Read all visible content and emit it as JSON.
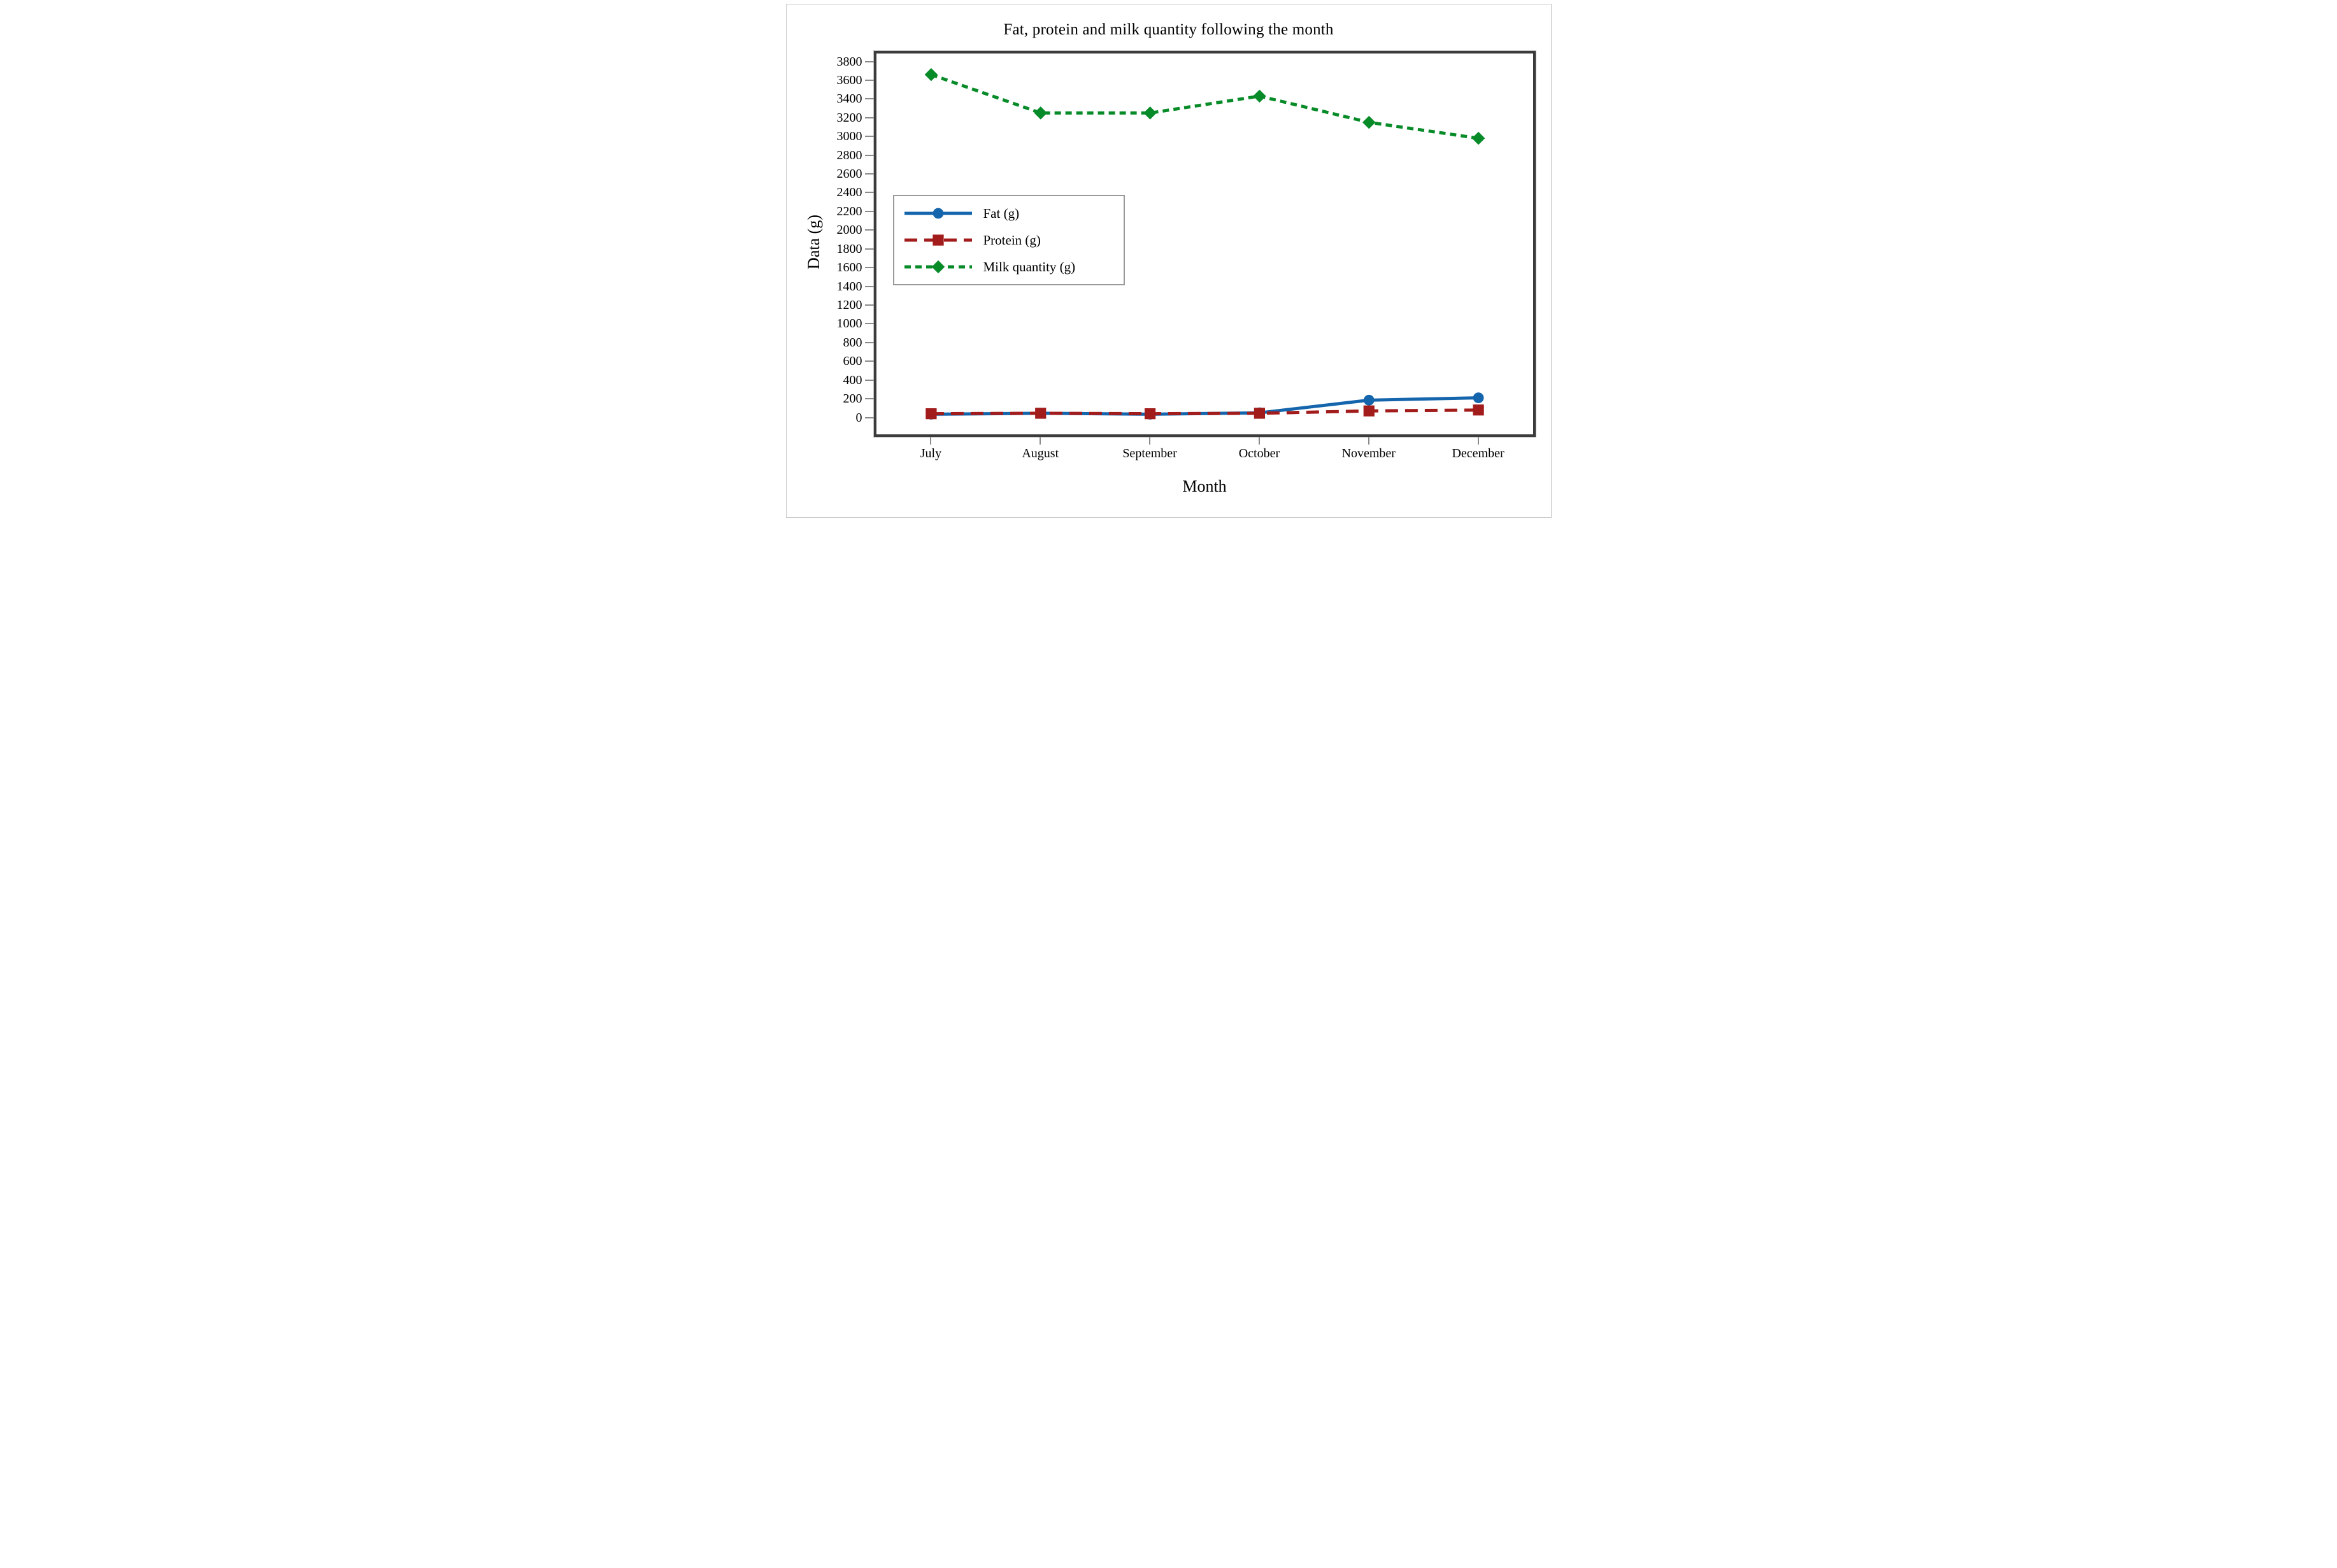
{
  "figure": {
    "title": "Fat, protein and milk quantity following the month"
  },
  "chart_data": {
    "type": "line",
    "title": "Fat, protein and milk quantity following the month",
    "xlabel": "Month",
    "ylabel": "Data (g)",
    "categories": [
      "July",
      "August",
      "September",
      "October",
      "November",
      "December"
    ],
    "y_ticks": [
      0,
      200,
      400,
      600,
      800,
      1000,
      1200,
      1400,
      1600,
      1800,
      2000,
      2200,
      2400,
      2600,
      2800,
      3000,
      3200,
      3400,
      3600,
      3800
    ],
    "ylim": [
      -180,
      3885
    ],
    "grid": false,
    "legend_position": "upper-left-inside",
    "axis_colors": {
      "frame": "#3b3b3b",
      "tick": "#8a8a8a",
      "text": "#000000"
    },
    "series": [
      {
        "name": "Fat (g)",
        "color": "#1565ad",
        "line_style": "solid",
        "dash": "",
        "marker": "circle",
        "values": [
          35,
          45,
          35,
          50,
          185,
          210
        ]
      },
      {
        "name": "Protein (g)",
        "color": "#a31c1c",
        "line_style": "dashed",
        "dash": "20 11",
        "marker": "square",
        "values": [
          40,
          45,
          40,
          45,
          70,
          80
        ]
      },
      {
        "name": "Milk quantity (g)",
        "color": "#078b28",
        "line_style": "dashed",
        "dash": "10 7",
        "marker": "diamond",
        "values": [
          3660,
          3250,
          3250,
          3430,
          3150,
          2980
        ]
      }
    ]
  }
}
